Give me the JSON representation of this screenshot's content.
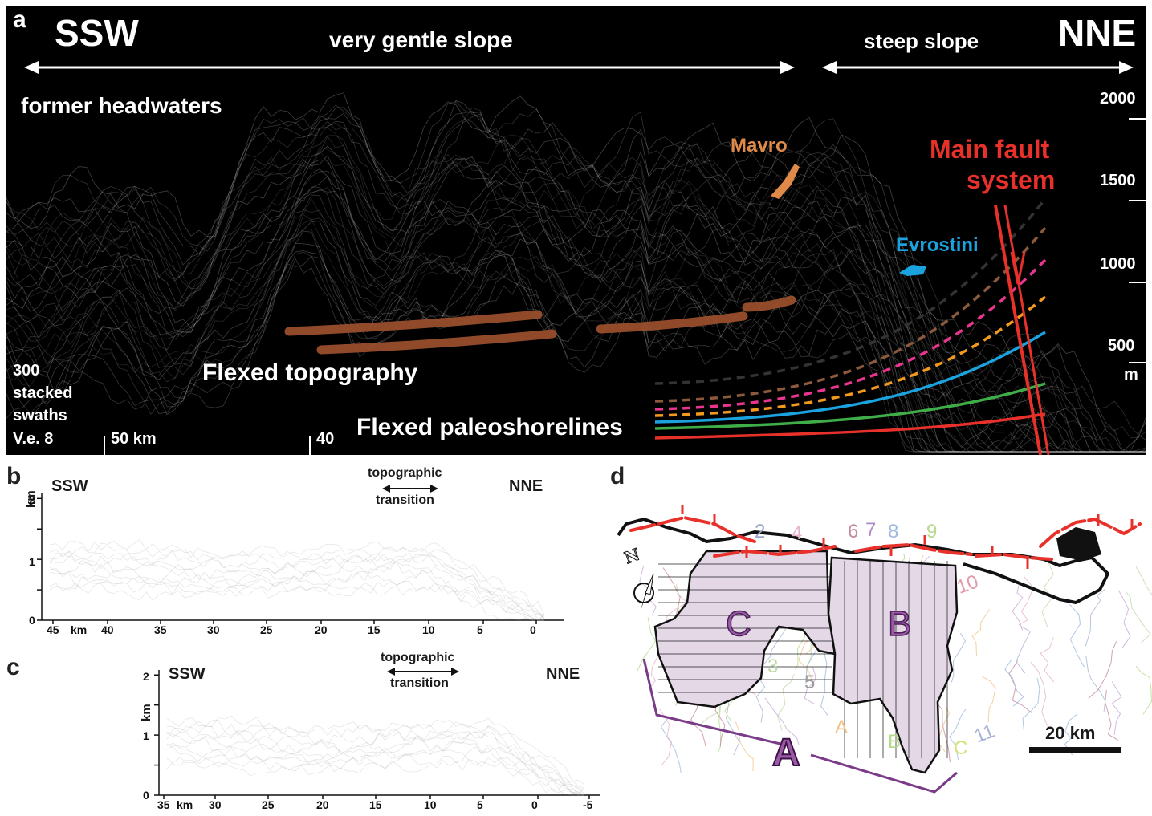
{
  "panel_a": {
    "letter": "a",
    "dir_left": "SSW",
    "dir_right": "NNE",
    "gentle_slope": "very gentle slope",
    "steep_slope": "steep slope",
    "former_headwaters": "former headwaters",
    "mavro": "Mavro",
    "main_fault_1": "Main fault",
    "main_fault_2": "system",
    "evrostini": "Evrostini",
    "flexed_topography": "Flexed topography",
    "flexed_paleoshorelines": "Flexed paleoshorelines",
    "swaths_1": "300",
    "swaths_2": "stacked",
    "swaths_3": "swaths",
    "ve": "V.e. 8",
    "dist_50": "50 km",
    "dist_40": "40",
    "elev_labels": [
      "2000",
      "1500",
      "1000",
      "500"
    ],
    "elev_unit": "m",
    "colors": {
      "mavro": "#e08a4a",
      "evrostini": "#1ba3e0",
      "fault": "#e8312a",
      "flexed_topography": "#a0522d",
      "shorelines": [
        "#333333",
        "#8b5a3c",
        "#e8368f",
        "#f29a1f",
        "#1ba3e0",
        "#3fae49",
        "#e8312a"
      ]
    }
  },
  "panel_b": {
    "letter": "b",
    "dir_left": "SSW",
    "dir_right": "NNE",
    "transition_1": "topographic",
    "transition_2": "transition",
    "y_label": "km",
    "y_ticks": [
      "2",
      "1",
      "0"
    ],
    "x_ticks": [
      "45",
      "km",
      "40",
      "35",
      "30",
      "25",
      "20",
      "15",
      "10",
      "5",
      "0"
    ]
  },
  "panel_c": {
    "letter": "c",
    "dir_left": "SSW",
    "dir_right": "NNE",
    "transition_1": "topographic",
    "transition_2": "transition",
    "y_label": "km",
    "y_ticks": [
      "2",
      "1",
      "0"
    ],
    "x_ticks": [
      "35",
      "km",
      "30",
      "25",
      "20",
      "15",
      "10",
      "5",
      "0",
      "-5"
    ]
  },
  "panel_d": {
    "letter": "d",
    "label_c": "C",
    "label_b": "B",
    "label_a": "A",
    "scale": "20 km",
    "north": "N",
    "basin_numbers": [
      {
        "t": "2",
        "c": "#9aa6c8"
      },
      {
        "t": "4",
        "c": "#e6b3c9"
      },
      {
        "t": "6",
        "c": "#c48ba0"
      },
      {
        "t": "7",
        "c": "#b08ac6"
      },
      {
        "t": "8",
        "c": "#9fb9e0"
      },
      {
        "t": "9",
        "c": "#b9d98c"
      },
      {
        "t": "10",
        "c": "#e39aa9"
      },
      {
        "t": "3",
        "c": "#bfd9a8"
      },
      {
        "t": "5",
        "c": "#9b9b9b"
      },
      {
        "t": "11",
        "c": "#a9b5d6"
      },
      {
        "t": "A",
        "c": "#f2c48a"
      },
      {
        "t": "B",
        "c": "#b7d98e"
      },
      {
        "t": "C",
        "c": "#d7e27a"
      }
    ],
    "colors": {
      "fault": "#e8312a",
      "subbasin_fill": "#e4d8e6",
      "label": "#9b59a6",
      "bracket": "#7a3b88"
    }
  }
}
